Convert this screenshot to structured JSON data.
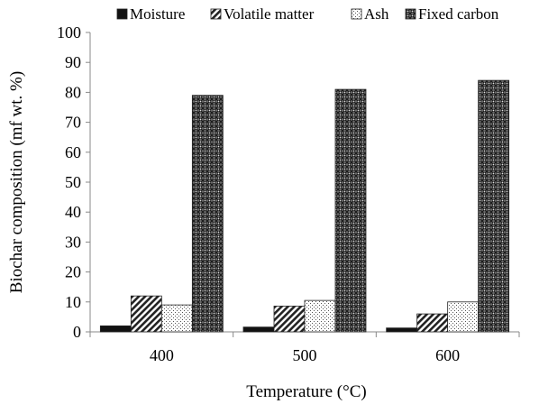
{
  "chart_data": {
    "type": "bar",
    "title": "",
    "xlabel": "Temperature (°C)",
    "ylabel": "Biochar composition (mf wt. %)",
    "categories": [
      "400",
      "500",
      "600"
    ],
    "ylim": [
      0,
      100
    ],
    "yticks": [
      0,
      10,
      20,
      30,
      40,
      50,
      60,
      70,
      80,
      90,
      100
    ],
    "grid": false,
    "legend_position": "top",
    "series": [
      {
        "name": "Moisture",
        "values": [
          2,
          1.6,
          1.3
        ],
        "pattern": "solid",
        "color": "#111111"
      },
      {
        "name": "Volatile matter",
        "values": [
          12,
          8.6,
          6
        ],
        "pattern": "diagonal",
        "color": "#222222"
      },
      {
        "name": "Ash",
        "values": [
          9,
          10.5,
          10
        ],
        "pattern": "dots",
        "color": "#444444"
      },
      {
        "name": "Fixed carbon",
        "values": [
          79,
          81,
          84
        ],
        "pattern": "crosshatch",
        "color": "#333333"
      }
    ]
  }
}
